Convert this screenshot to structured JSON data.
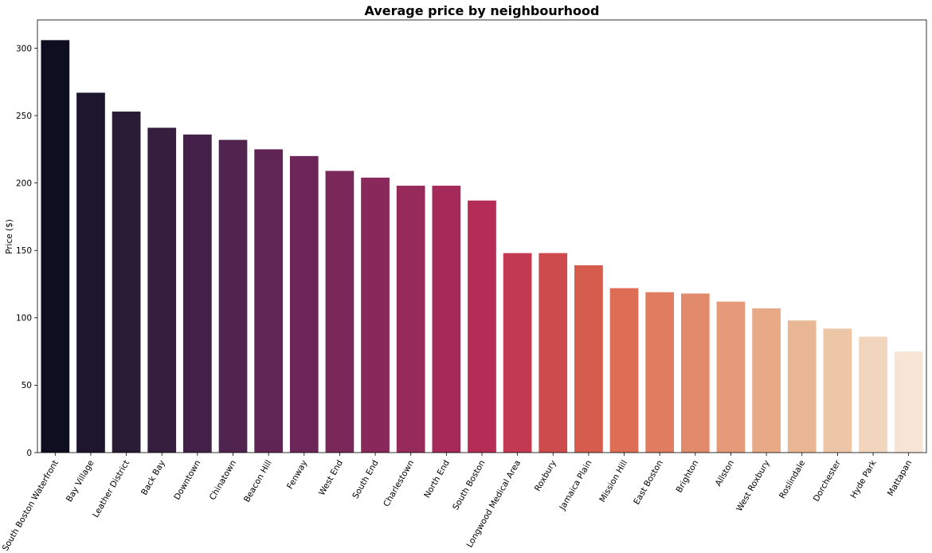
{
  "chart_data": {
    "type": "bar",
    "title": "Average price by neighbourhood",
    "xlabel": "",
    "ylabel": "Price ($)",
    "ylim": [
      0,
      321
    ],
    "yticks": [
      0,
      50,
      100,
      150,
      200,
      250,
      300
    ],
    "grid": false,
    "legend": "none",
    "categories": [
      "South Boston Waterfront",
      "Bay Village",
      "Leather District",
      "Back Bay",
      "Downtown",
      "Chinatown",
      "Beacon Hill",
      "Fenway",
      "West End",
      "South End",
      "Charlestown",
      "North End",
      "South Boston",
      "Longwood Medical Area",
      "Roxbury",
      "Jamaica Plain",
      "Mission Hill",
      "East Boston",
      "Brighton",
      "Allston",
      "West Roxbury",
      "Roslindale",
      "Dorchester",
      "Hyde Park",
      "Mattapan"
    ],
    "values": [
      306,
      267,
      253,
      241,
      236,
      232,
      225,
      220,
      209,
      204,
      198,
      198,
      187,
      148,
      148,
      139,
      122,
      119,
      118,
      112,
      107,
      98,
      92,
      86,
      75
    ],
    "colors": [
      "#0f0d20",
      "#1d162d",
      "#2a1b37",
      "#361e3f",
      "#432148",
      "#512450",
      "#5f2555",
      "#6c2658",
      "#7a275a",
      "#88285b",
      "#962a5b",
      "#a52a5a",
      "#b52d57",
      "#c23a52",
      "#cd4b4d",
      "#d55c4c",
      "#dd6d54",
      "#e07c60",
      "#e28b6c",
      "#e59a79",
      "#e8a986",
      "#eab795",
      "#edc6a7",
      "#f1d5bc",
      "#f6e4d4"
    ]
  }
}
